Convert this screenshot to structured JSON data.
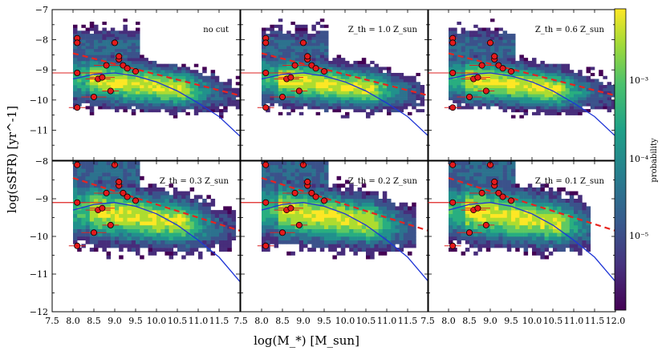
{
  "chart_data": {
    "type": "heatmap",
    "panels": [
      {
        "annotation": "no cut"
      },
      {
        "annotation": "Z_th = 1.0 Z_sun"
      },
      {
        "annotation": "Z_th = 0.6 Z_sun"
      },
      {
        "annotation": "Z_th = 0.3 Z_sun"
      },
      {
        "annotation": "Z_th = 0.2 Z_sun"
      },
      {
        "annotation": "Z_th = 0.1 Z_sun"
      }
    ],
    "xlabel": "log(M_*) [M_sun]",
    "ylabel": "log(sSFR) [yr^-1]",
    "xlim": [
      7.5,
      12.0
    ],
    "ylim": [
      -12,
      -7
    ],
    "x_tick_labels_left": [
      "7.5",
      "8.0",
      "8.5",
      "9.0",
      "9.5",
      "10.0",
      "10.5",
      "11.0",
      "11.5"
    ],
    "x_tick_labels_middle": [
      "7.5",
      "8.0",
      "8.5",
      "9.0",
      "9.5",
      "10.0",
      "10.5",
      "11.0",
      "11.5"
    ],
    "x_tick_labels_right": [
      "7.5",
      "8.0",
      "8.5",
      "9.0",
      "9.5",
      "10.0",
      "10.5",
      "11.0",
      "11.5",
      "12.0"
    ],
    "y_tick_labels_top": [
      "−7",
      "−8",
      "−9",
      "−10",
      "−11"
    ],
    "y_tick_labels_bottom": [
      "−8",
      "−9",
      "−10",
      "−11",
      "−12"
    ],
    "colorbar": {
      "label": "probability",
      "scale": "log",
      "range": [
        1e-06,
        0.008
      ],
      "tick_labels": [
        "10⁻³",
        "10⁻⁴",
        "10⁻⁵"
      ]
    },
    "fit_blue": {
      "x": [
        8.0,
        8.5,
        9.0,
        9.5,
        10.0,
        10.5,
        11.0,
        11.5,
        12.0
      ],
      "y": [
        -9.3,
        -9.15,
        -9.1,
        -9.2,
        -9.4,
        -9.7,
        -10.1,
        -10.55,
        -11.2
      ]
    },
    "fit_red_dashed": {
      "x": [
        8.0,
        9.0,
        10.0,
        11.0,
        12.0
      ],
      "y": [
        -8.45,
        -8.8,
        -9.15,
        -9.5,
        -9.85
      ]
    },
    "observed_points": {
      "x": [
        8.1,
        8.1,
        8.1,
        8.1,
        8.5,
        8.6,
        8.7,
        8.8,
        8.9,
        9.0,
        9.1,
        9.1,
        9.2,
        9.3,
        9.5
      ],
      "y": [
        -7.95,
        -9.1,
        -10.25,
        -8.1,
        -9.9,
        -9.3,
        -9.25,
        -8.85,
        -9.7,
        -8.1,
        -8.65,
        -8.55,
        -8.85,
        -8.95,
        -9.05
      ],
      "xerr": [
        0.1,
        0.6,
        0.2,
        0.1,
        0.3,
        0.3,
        0.3,
        0.3,
        0.2,
        0.1,
        0.1,
        0.1,
        0.1,
        0.1,
        0.1
      ]
    }
  }
}
